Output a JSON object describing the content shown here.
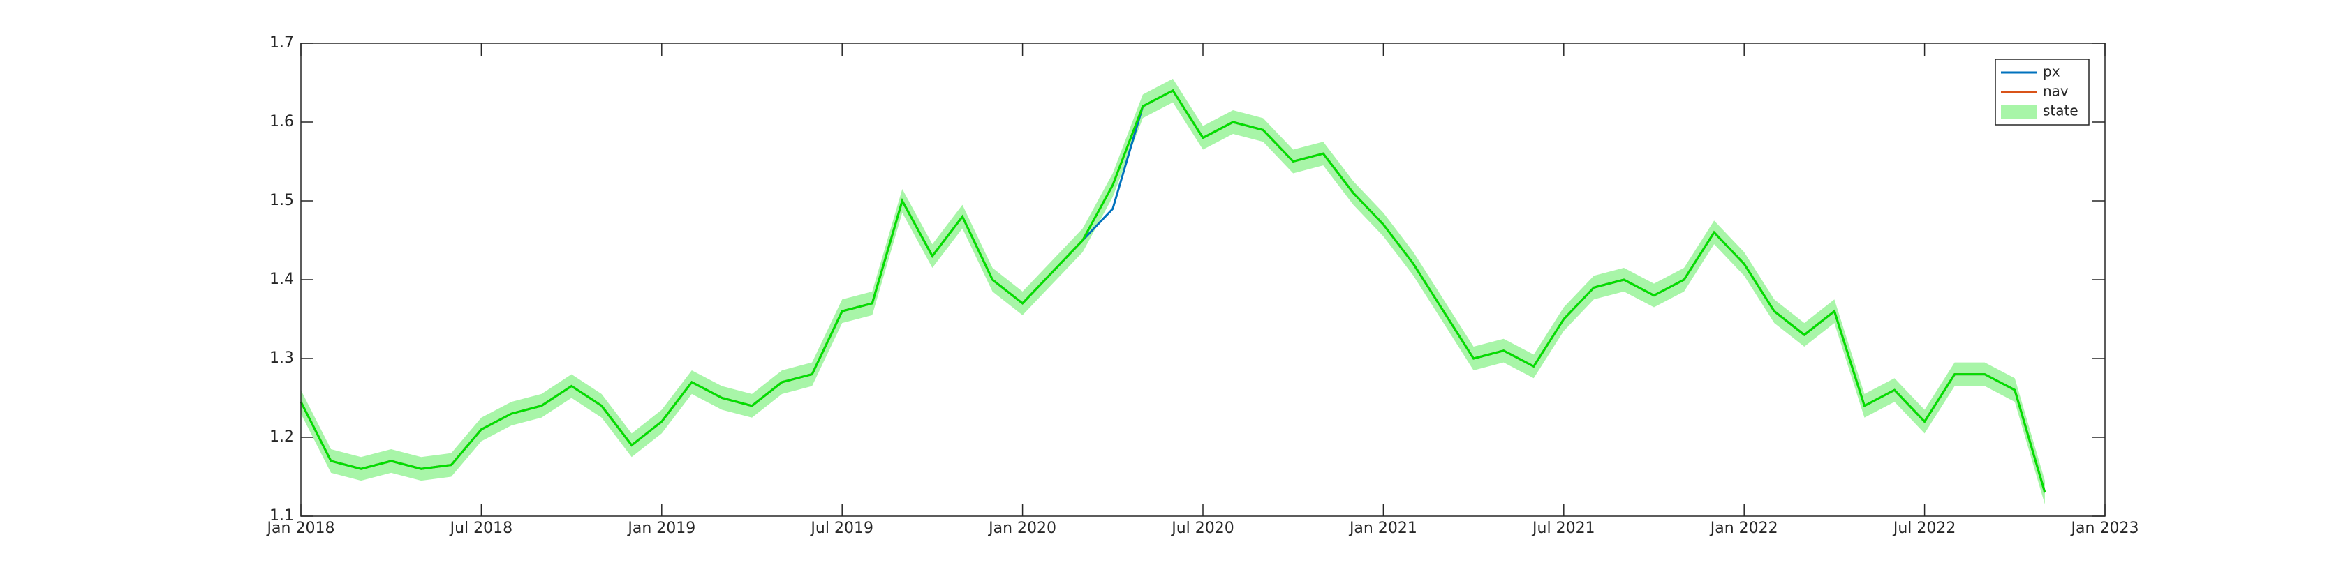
{
  "chart_data": {
    "type": "line",
    "x": [
      "2018-01",
      "2018-02",
      "2018-03",
      "2018-04",
      "2018-05",
      "2018-06",
      "2018-07",
      "2018-08",
      "2018-09",
      "2018-10",
      "2018-11",
      "2018-12",
      "2019-01",
      "2019-02",
      "2019-03",
      "2019-04",
      "2019-05",
      "2019-06",
      "2019-07",
      "2019-08",
      "2019-09",
      "2019-10",
      "2019-11",
      "2019-12",
      "2020-01",
      "2020-02",
      "2020-03",
      "2020-04",
      "2020-05",
      "2020-06",
      "2020-07",
      "2020-08",
      "2020-09",
      "2020-10",
      "2020-11",
      "2020-12",
      "2021-01",
      "2021-02",
      "2021-03",
      "2021-04",
      "2021-05",
      "2021-06",
      "2021-07",
      "2021-08",
      "2021-09",
      "2021-10",
      "2021-11",
      "2021-12",
      "2022-01",
      "2022-02",
      "2022-03",
      "2022-04",
      "2022-05",
      "2022-06",
      "2022-07",
      "2022-08",
      "2022-09",
      "2022-10",
      "2022-11"
    ],
    "series": [
      {
        "name": "px",
        "color": "#0072bd",
        "values": [
          1.245,
          1.17,
          1.16,
          1.17,
          1.16,
          1.165,
          1.21,
          1.23,
          1.24,
          1.265,
          1.24,
          1.19,
          1.22,
          1.27,
          1.25,
          1.24,
          1.27,
          1.28,
          1.36,
          1.37,
          1.5,
          1.43,
          1.48,
          1.4,
          1.37,
          1.41,
          1.45,
          1.49,
          1.62,
          1.64,
          1.58,
          1.6,
          1.59,
          1.55,
          1.56,
          1.51,
          1.47,
          1.42,
          1.36,
          1.3,
          1.31,
          1.29,
          1.35,
          1.39,
          1.4,
          1.38,
          1.4,
          1.46,
          1.42,
          1.36,
          1.33,
          1.36,
          1.24,
          1.26,
          1.22,
          1.28,
          1.28,
          1.26,
          1.13
        ]
      },
      {
        "name": "nav",
        "color": "#d95319",
        "values": [
          1.245,
          1.17,
          1.16,
          1.17,
          1.16,
          1.165,
          1.21,
          1.23,
          1.24,
          1.265,
          1.24,
          1.19,
          1.22,
          1.27,
          1.25,
          1.24,
          1.27,
          1.28,
          1.36,
          1.37,
          1.5,
          1.43,
          1.48,
          1.4,
          1.37,
          1.41,
          1.45,
          1.52,
          1.62,
          1.64,
          1.58,
          1.6,
          1.59,
          1.55,
          1.56,
          1.51,
          1.47,
          1.42,
          1.36,
          1.3,
          1.31,
          1.29,
          1.35,
          1.39,
          1.4,
          1.38,
          1.4,
          1.46,
          1.42,
          1.36,
          1.33,
          1.36,
          1.24,
          1.26,
          1.22,
          1.28,
          1.28,
          1.26,
          1.13
        ]
      },
      {
        "name": "state",
        "color": "#00e000",
        "band_color": "#a8f5a8",
        "band": 0.015,
        "values": [
          1.245,
          1.17,
          1.16,
          1.17,
          1.16,
          1.165,
          1.21,
          1.23,
          1.24,
          1.265,
          1.24,
          1.19,
          1.22,
          1.27,
          1.25,
          1.24,
          1.27,
          1.28,
          1.36,
          1.37,
          1.5,
          1.43,
          1.48,
          1.4,
          1.37,
          1.41,
          1.45,
          1.52,
          1.62,
          1.64,
          1.58,
          1.6,
          1.59,
          1.55,
          1.56,
          1.51,
          1.47,
          1.42,
          1.36,
          1.3,
          1.31,
          1.29,
          1.35,
          1.39,
          1.4,
          1.38,
          1.4,
          1.46,
          1.42,
          1.36,
          1.33,
          1.36,
          1.24,
          1.26,
          1.22,
          1.28,
          1.28,
          1.26,
          1.13
        ]
      }
    ],
    "xlim": [
      "2018-01",
      "2023-01"
    ],
    "xticks": [
      {
        "value": "2018-01",
        "label": "Jan 2018"
      },
      {
        "value": "2018-07",
        "label": "Jul 2018"
      },
      {
        "value": "2019-01",
        "label": "Jan 2019"
      },
      {
        "value": "2019-07",
        "label": "Jul 2019"
      },
      {
        "value": "2020-01",
        "label": "Jan 2020"
      },
      {
        "value": "2020-07",
        "label": "Jul 2020"
      },
      {
        "value": "2021-01",
        "label": "Jan 2021"
      },
      {
        "value": "2021-07",
        "label": "Jul 2021"
      },
      {
        "value": "2022-01",
        "label": "Jan 2022"
      },
      {
        "value": "2022-07",
        "label": "Jul 2022"
      },
      {
        "value": "2023-01",
        "label": "Jan 2023"
      }
    ],
    "ylim": [
      1.1,
      1.7
    ],
    "yticks": [
      1.1,
      1.2,
      1.3,
      1.4,
      1.5,
      1.6,
      1.7
    ],
    "grid": false,
    "legend": "upper-right"
  }
}
